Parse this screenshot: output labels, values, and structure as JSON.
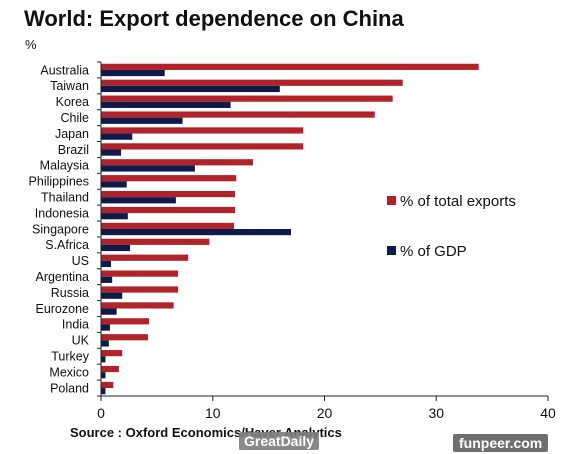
{
  "header": {
    "title": "World: Export dependence on China",
    "unit": "%"
  },
  "footer": {
    "source": "Source : Oxford Economics/Haver Analytics"
  },
  "watermarks": {
    "left": "GreatDaily",
    "right": "funpeer.com"
  },
  "colors": {
    "exports": "#b0232a",
    "gdp": "#0d1a4a"
  },
  "chart_data": {
    "type": "bar",
    "orientation": "horizontal",
    "categories": [
      "Australia",
      "Taiwan",
      "Korea",
      "Chile",
      "Japan",
      "Brazil",
      "Malaysia",
      "Philippines",
      "Thailand",
      "Indonesia",
      "Singapore",
      "S.Africa",
      "US",
      "Argentina",
      "Russia",
      "Eurozone",
      "India",
      "UK",
      "Turkey",
      "Mexico",
      "Poland"
    ],
    "series": [
      {
        "name": "% of total exports",
        "values": [
          33.8,
          27.0,
          26.1,
          24.5,
          18.1,
          18.1,
          13.6,
          12.1,
          12.0,
          12.0,
          11.9,
          9.7,
          7.8,
          6.9,
          6.9,
          6.5,
          4.3,
          4.2,
          1.9,
          1.6,
          1.1
        ]
      },
      {
        "name": "% of GDP",
        "values": [
          5.7,
          16.0,
          11.6,
          7.3,
          2.8,
          1.8,
          8.4,
          2.3,
          6.7,
          2.4,
          17.0,
          2.6,
          0.9,
          1.0,
          1.9,
          1.4,
          0.8,
          0.7,
          0.4,
          0.4,
          0.4
        ]
      }
    ],
    "xlim": [
      0,
      40
    ],
    "xticks": [
      0,
      10,
      20,
      30,
      40
    ],
    "legend_position": "right"
  }
}
